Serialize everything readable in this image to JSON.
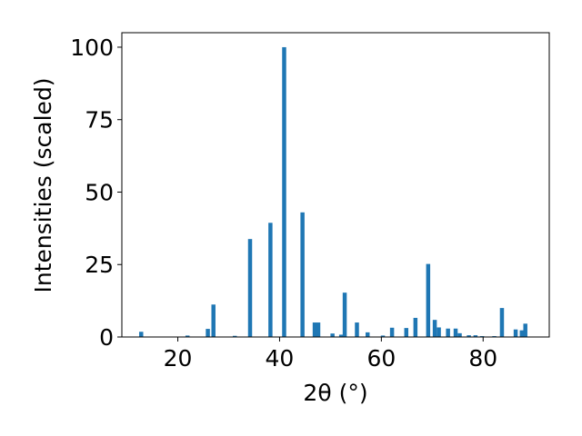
{
  "chart_data": {
    "type": "bar",
    "xlabel": "2θ (°)",
    "ylabel": "Intensities (scaled)",
    "xlim": [
      9,
      93
    ],
    "ylim": [
      0,
      105
    ],
    "xticks": [
      20,
      40,
      60,
      80
    ],
    "yticks": [
      0,
      25,
      50,
      75,
      100
    ],
    "grid": false,
    "bar_color": "#1f77b4",
    "bar_width": 0.8,
    "x": [
      12.8,
      21.9,
      25.9,
      27.0,
      31.2,
      34.2,
      38.2,
      40.9,
      44.5,
      46.9,
      47.6,
      50.4,
      52.1,
      52.8,
      55.2,
      57.3,
      60.3,
      62.1,
      64.9,
      66.7,
      69.2,
      70.5,
      71.3,
      73.1,
      74.6,
      75.4,
      77.2,
      78.5,
      79.8,
      82.2,
      83.7,
      86.4,
      87.6,
      88.3
    ],
    "values": [
      1.8,
      0.5,
      2.8,
      11.2,
      0.4,
      33.8,
      39.4,
      100,
      43.0,
      5.0,
      5.0,
      1.2,
      0.8,
      15.3,
      5.0,
      1.6,
      0.5,
      3.2,
      3.1,
      6.6,
      25.2,
      5.9,
      3.3,
      2.9,
      2.9,
      1.3,
      0.6,
      0.6,
      0.3,
      0.3,
      10.0,
      2.6,
      2.3,
      4.6
    ]
  }
}
